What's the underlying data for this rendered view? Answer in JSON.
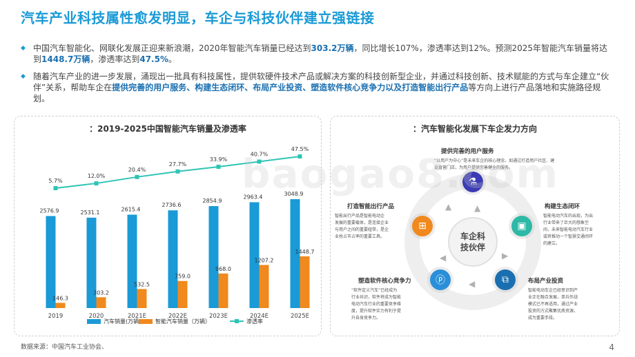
{
  "title": "汽车产业科技属性愈发明显，车企与科技伙伴建立强链接",
  "bullets": [
    {
      "p1": "中国汽车智能化、网联化发展正迎来新浪潮，2020年智能汽车销量已经达到",
      "b1": "303.2万辆",
      "p2": "，同比增长107%，渗透率达到12%。预测2025年智能汽车销量将达到",
      "b2": "1448.7万辆",
      "p3": "，渗透率达到",
      "b3": "47.5%",
      "p4": "。"
    },
    {
      "p1": "随着汽车产业的进一步发展，涌现出一批具有科技属性，提供软硬件技术产品或解决方案的科技创新型企业，并通过科技创新、技术赋能的方式与车企建立“伙伴”关系，帮助车企在",
      "b1": "提供完善的用户服务、构建生态闭环、布局产业投资、塑造软件核心竞争力以及打造智能出行产品",
      "p2": "等方向上进行产品落地和实施路径规划。"
    }
  ],
  "left_panel": {
    "title": "：2019-2025中国智能汽车销量及渗透率"
  },
  "chart_data": {
    "type": "bar",
    "title": "：2019-2025中国智能汽车销量及渗透率",
    "categories": [
      "2019",
      "2020",
      "2021E",
      "2022E",
      "2023E",
      "2024E",
      "2025E"
    ],
    "series": [
      {
        "name": "汽车销量(万辆)",
        "kind": "bar",
        "color": "#1a9ad6",
        "values": [
          2576.9,
          2531.1,
          2615.4,
          2736.6,
          2854.9,
          2963.4,
          3048.9
        ]
      },
      {
        "name": "智能汽车销量（万辆）",
        "kind": "bar",
        "color": "#f0891e",
        "values": [
          146.3,
          303.2,
          532.5,
          759.0,
          968.0,
          1207.2,
          1448.7
        ]
      },
      {
        "name": "渗透率",
        "kind": "line",
        "color": "#2ec4b6",
        "values": [
          5.7,
          12.0,
          20.4,
          27.7,
          33.9,
          40.7,
          47.5
        ],
        "labels": [
          "5.7%",
          "12.0%",
          "20.4%",
          "27.7%",
          "33.9%",
          "40.7%",
          "47.5%"
        ]
      }
    ],
    "value_labels": {
      "total": [
        "2576.9",
        "2531.1",
        "2615.4",
        "2736.6",
        "2854.9",
        "2963.4",
        "3048.9"
      ],
      "smart": [
        "146.3",
        "303.2",
        "532.5",
        "759.0",
        "968.0",
        "1207.2",
        "1448.7"
      ]
    },
    "legend_position": "bottom",
    "grid": false
  },
  "right_panel": {
    "title": "：汽车智能化发展下车企发力方向",
    "center": [
      "车企科",
      "技伙伴"
    ],
    "items": [
      {
        "label": "提供完善的用户服务",
        "desc": [
          "“以用户为中心”是未来车企的核心理念，如通过打造用户社区、建",
          "设直营门店，为用户提供完善健全的服务。"
        ]
      },
      {
        "label": "构建生态闭环",
        "desc": [
          "智能电动汽车的出现，为出",
          "行业带来了巨大的想象空",
          "间，未来智能电动汽车行业",
          "或将推动一个智慧交通闭环",
          "的建立。"
        ]
      },
      {
        "label": "布局产业投资",
        "desc": [
          "智能电动车企已经意识到产",
          "业正在融合发展，单兵作战",
          "模式已不再适用，通过产业",
          "投资的方式聚集优质资源，",
          "成为重要手段。"
        ]
      },
      {
        "label": "塑造软件核心竞争力",
        "desc": [
          "“软件定义汽车”已经成为",
          "行业共识，软件将成为智能",
          "电动汽车行业的重要竞争维",
          "度，提升软件实力有利于提",
          "升自身竞争力。"
        ]
      },
      {
        "label": "打造智能出行产品",
        "desc": [
          "智能出行产品是智能电动企",
          "发展的重要载体，是连接企业",
          "与用户之间的重要纽带，是企",
          "业抢占市占率的重要工具。"
        ]
      }
    ],
    "icons": [
      "flask-icon",
      "image-icon",
      "share-icon",
      "document-icon",
      "network-icon"
    ]
  },
  "watermark": "baogao8.com",
  "source": "数据来源：中国汽车工业协会、",
  "page_number": "4"
}
